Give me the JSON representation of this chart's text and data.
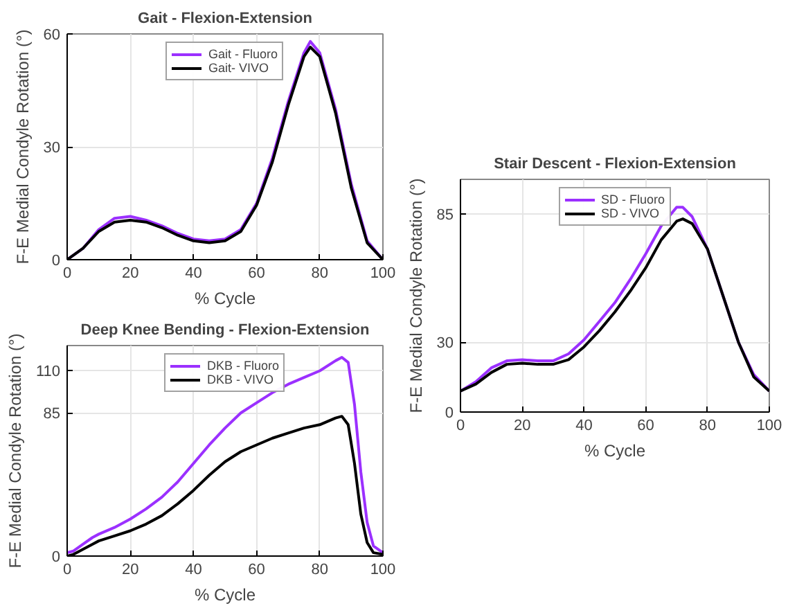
{
  "chart_data": [
    {
      "type": "line",
      "title": "Gait - Flexion-Extension",
      "xlabel": "% Cycle",
      "ylabel": "F-E Medial Condyle Rotation (°)",
      "x": [
        0,
        5,
        10,
        15,
        20,
        25,
        30,
        35,
        40,
        45,
        50,
        55,
        60,
        65,
        70,
        75,
        77,
        80,
        85,
        90,
        95,
        100
      ],
      "xlim": [
        0,
        100
      ],
      "xticks": [
        0,
        20,
        40,
        60,
        80,
        100
      ],
      "ylim": [
        0,
        60
      ],
      "yticks": [
        0,
        30,
        60
      ],
      "grid": true,
      "legend": "top",
      "line_style": "solid",
      "series": [
        {
          "name": "Gait - Fluoro",
          "color": "#9b30ff",
          "values": [
            0,
            3,
            8,
            11,
            11.5,
            10.5,
            9,
            7,
            5.5,
            5,
            5.5,
            8,
            15,
            27,
            42,
            55,
            58,
            55,
            40,
            20,
            5,
            0
          ]
        },
        {
          "name": "Gait- VIVO",
          "color": "#000000",
          "values": [
            0,
            3,
            7.5,
            10,
            10.5,
            10,
            8.5,
            6.5,
            5,
            4.5,
            5,
            7.5,
            14.5,
            26,
            41,
            54,
            56.5,
            54,
            39,
            19,
            4.5,
            0
          ]
        }
      ]
    },
    {
      "type": "line",
      "title": "Deep Knee Bending - Flexion-Extension",
      "xlabel": "% Cycle",
      "ylabel": "F-E Medial Condyle Rotation (°)",
      "x": [
        0,
        2,
        5,
        8,
        10,
        15,
        20,
        25,
        30,
        35,
        40,
        45,
        50,
        55,
        60,
        65,
        70,
        75,
        80,
        85,
        87,
        89,
        91,
        93,
        95,
        97,
        100
      ],
      "xlim": [
        0,
        100
      ],
      "xticks": [
        0,
        20,
        40,
        60,
        80,
        100
      ],
      "ylim": [
        0,
        125
      ],
      "yticks": [
        0,
        85,
        110
      ],
      "grid": true,
      "legend": "top",
      "line_style": "solid",
      "series": [
        {
          "name": "DKB - Fluoro",
          "color": "#9b30ff",
          "values": [
            2,
            3,
            7,
            11,
            13,
            17,
            22,
            28,
            35,
            44,
            55,
            66,
            76,
            85,
            91,
            97,
            102,
            106,
            110,
            116,
            118,
            115,
            90,
            50,
            20,
            6,
            2
          ]
        },
        {
          "name": "DKB - VIVO",
          "color": "#000000",
          "values": [
            0,
            1,
            4,
            7,
            9,
            12,
            15,
            19,
            24,
            31,
            39,
            48,
            56,
            62,
            66,
            70,
            73,
            76,
            78,
            82,
            83,
            78,
            55,
            25,
            8,
            2,
            1
          ]
        }
      ]
    },
    {
      "type": "line",
      "title": "Stair Descent - Flexion-Extension",
      "xlabel": "% Cycle",
      "ylabel": "F-E Medial Condyle Rotation (°)",
      "x": [
        0,
        5,
        10,
        15,
        20,
        25,
        30,
        35,
        40,
        45,
        50,
        55,
        60,
        65,
        70,
        72,
        75,
        80,
        85,
        90,
        95,
        100
      ],
      "xlim": [
        0,
        100
      ],
      "xticks": [
        0,
        20,
        40,
        60,
        80,
        100
      ],
      "ylim": [
        0,
        100
      ],
      "yticks": [
        0,
        30,
        85
      ],
      "grid": true,
      "legend": "top",
      "line_style": "solid",
      "series": [
        {
          "name": "SD - Fluoro",
          "color": "#9b30ff",
          "values": [
            9,
            13,
            19,
            22,
            22.5,
            22,
            22,
            25,
            31,
            39,
            47,
            57,
            68,
            80,
            88,
            88,
            84,
            70,
            50,
            30,
            16,
            9
          ]
        },
        {
          "name": "SD - VIVO",
          "color": "#000000",
          "values": [
            9,
            12,
            17,
            20.5,
            21,
            20.5,
            20.5,
            22.5,
            28,
            35,
            43,
            52,
            62,
            74,
            82,
            83,
            81,
            70,
            50,
            30,
            15,
            9
          ]
        }
      ]
    }
  ]
}
